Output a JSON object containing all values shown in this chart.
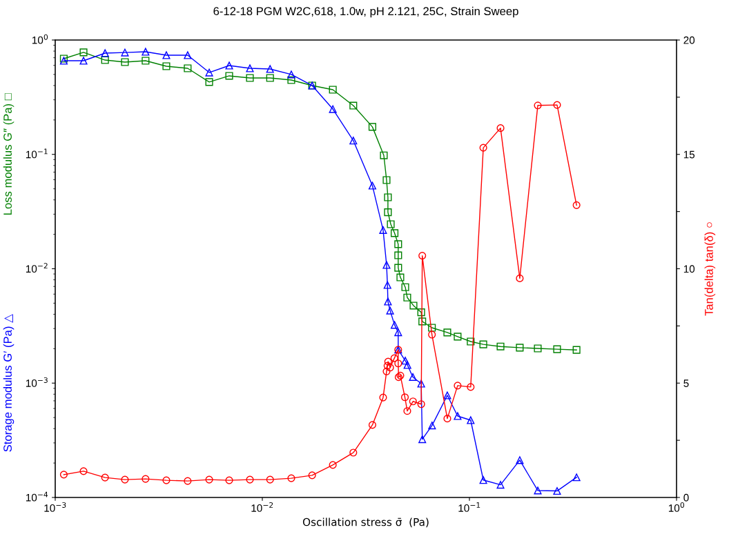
{
  "chart_data": {
    "type": "line",
    "title": "6-12-18 PGM W2C,618, 1.0w, pH 2.121, 25C, Strain Sweep",
    "xlabel": "Oscillation stress σ̄  (Pa)",
    "y2label": "Tan(delta) tan(δ) ○",
    "log": "xy",
    "xlim": [
      0.001,
      1
    ],
    "xticks": [
      {
        "value": 0.001,
        "label": "10$^{−3}$"
      },
      {
        "value": 0.01,
        "label": "10$^{−2}$"
      },
      {
        "value": 0.1,
        "label": "10$^{−1}$"
      },
      {
        "value": 1,
        "label": "10$^{0}$"
      }
    ],
    "ylim": [
      0.0001,
      1
    ],
    "yticks": [
      {
        "value": 0.0001,
        "label": "10$^{−4}$"
      },
      {
        "value": 0.001,
        "label": "10$^{−3}$"
      },
      {
        "value": 0.01,
        "label": "10$^{−2}$"
      },
      {
        "value": 0.1,
        "label": "10$^{−1}$"
      },
      {
        "value": 1,
        "label": "10$^{0}$"
      }
    ],
    "y2lim": [
      0,
      20
    ],
    "y2ticks": [
      0,
      {
        "value": 2.5,
        "label": null
      },
      5,
      {
        "value": 7.5,
        "label": null
      },
      10,
      {
        "value": 12.5,
        "label": null
      },
      15,
      {
        "value": 17.5,
        "label": null
      },
      20
    ],
    "grid": false,
    "legend": false,
    "series": [
      {
        "name": "Loss modulus G″ (Pa) □",
        "color": "#008000",
        "marker": "square",
        "x": [
          0.0011,
          0.00137,
          0.00174,
          0.00217,
          0.00273,
          0.00344,
          0.00436,
          0.00554,
          0.00692,
          0.00871,
          0.0109,
          0.0138,
          0.0174,
          0.0219,
          0.0275,
          0.034,
          0.0386,
          0.0398,
          0.0404,
          0.0404,
          0.0417,
          0.0435,
          0.0453,
          0.0453,
          0.0453,
          0.0464,
          0.049,
          0.0501,
          0.0537,
          0.0585,
          0.0592,
          0.0659,
          0.0782,
          0.0877,
          0.1014,
          0.1167,
          0.1413,
          0.175,
          0.2138,
          0.265,
          0.329
        ],
        "values": [
          0.687,
          0.78,
          0.668,
          0.641,
          0.659,
          0.59,
          0.566,
          0.429,
          0.486,
          0.466,
          0.466,
          0.447,
          0.4,
          0.368,
          0.267,
          0.174,
          0.098,
          0.0596,
          0.0421,
          0.0312,
          0.0245,
          0.0205,
          0.0164,
          0.0131,
          0.0102,
          0.0084,
          0.0069,
          0.0056,
          0.00476,
          0.00416,
          0.00346,
          0.00305,
          0.00277,
          0.00255,
          0.00231,
          0.00218,
          0.00209,
          0.00204,
          0.00201,
          0.00198,
          0.00195
        ]
      },
      {
        "name": "Storage modulus G′ (Pa) △",
        "color": "#0000ff",
        "marker": "triangle",
        "x": [
          0.0011,
          0.00137,
          0.00174,
          0.00217,
          0.00273,
          0.00344,
          0.00436,
          0.00554,
          0.00692,
          0.00871,
          0.0109,
          0.0138,
          0.0174,
          0.0219,
          0.0275,
          0.034,
          0.0383,
          0.0398,
          0.0402,
          0.0404,
          0.0414,
          0.0435,
          0.0453,
          0.0453,
          0.049,
          0.0502,
          0.0533,
          0.0585,
          0.0592,
          0.066,
          0.0782,
          0.0877,
          0.1014,
          0.1167,
          0.1413,
          0.175,
          0.2138,
          0.265,
          0.329
        ],
        "values": [
          0.659,
          0.659,
          0.768,
          0.778,
          0.79,
          0.737,
          0.737,
          0.52,
          0.598,
          0.566,
          0.558,
          0.5,
          0.4,
          0.249,
          0.132,
          0.0533,
          0.0218,
          0.0108,
          0.00721,
          0.00517,
          0.00431,
          0.00323,
          0.00278,
          0.00196,
          0.00157,
          0.00144,
          0.00113,
          0.00099,
          0.000323,
          0.000426,
          0.000781,
          0.000515,
          0.000474,
          0.000142,
          0.000129,
          0.000212,
          0.000115,
          0.000114,
          0.00015
        ]
      },
      {
        "color": "#ff0000",
        "marker": "circle",
        "axis": "y2",
        "x": [
          0.0011,
          0.00137,
          0.00174,
          0.00217,
          0.00273,
          0.00344,
          0.00436,
          0.00554,
          0.00692,
          0.00871,
          0.0109,
          0.0138,
          0.0174,
          0.0219,
          0.0275,
          0.034,
          0.0383,
          0.0398,
          0.0402,
          0.0405,
          0.0414,
          0.0434,
          0.0453,
          0.0453,
          0.0455,
          0.0464,
          0.0488,
          0.0501,
          0.0534,
          0.0585,
          0.0592,
          0.0659,
          0.0782,
          0.0877,
          0.1014,
          0.1167,
          0.1413,
          0.175,
          0.2138,
          0.265,
          0.329
        ],
        "values": [
          1.0,
          1.15,
          0.87,
          0.78,
          0.81,
          0.75,
          0.72,
          0.78,
          0.75,
          0.78,
          0.78,
          0.84,
          0.97,
          1.42,
          1.96,
          3.17,
          4.37,
          5.51,
          5.76,
          5.94,
          5.68,
          6.09,
          6.46,
          5.86,
          5.26,
          5.33,
          4.38,
          3.78,
          4.2,
          4.08,
          10.57,
          7.12,
          3.45,
          4.89,
          4.83,
          15.29,
          16.15,
          9.58,
          17.14,
          17.16,
          12.78
        ]
      }
    ]
  }
}
